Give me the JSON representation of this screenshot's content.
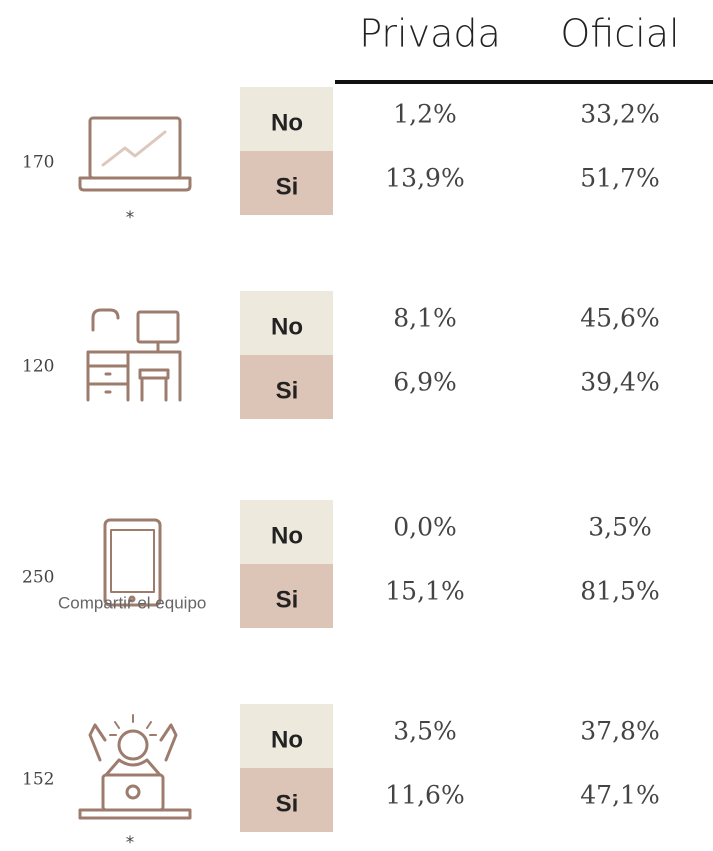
{
  "header": {
    "columns": [
      "Privada",
      "Oficial"
    ]
  },
  "groups": [
    {
      "number": "170",
      "note": "*",
      "rows": [
        {
          "label": "No",
          "values": [
            "1,2%",
            "33,2%"
          ]
        },
        {
          "label": "Si",
          "values": [
            "13,9%",
            "51,7%"
          ]
        }
      ]
    },
    {
      "number": "120",
      "rows": [
        {
          "label": "No",
          "values": [
            "8,1%",
            "45,6%"
          ]
        },
        {
          "label": "Si",
          "values": [
            "6,9%",
            "39,4%"
          ]
        }
      ]
    },
    {
      "number": "250",
      "overlay": "Compartir el equipo",
      "rows": [
        {
          "label": "No",
          "values": [
            "0,0%",
            "3,5%"
          ]
        },
        {
          "label": "Si",
          "values": [
            "15,1%",
            "81,5%"
          ]
        }
      ]
    },
    {
      "number": "152",
      "note": "*",
      "rows": [
        {
          "label": "No",
          "values": [
            "3,5%",
            "37,8%"
          ]
        },
        {
          "label": "Si",
          "values": [
            "11,6%",
            "47,1%"
          ]
        }
      ]
    }
  ]
}
